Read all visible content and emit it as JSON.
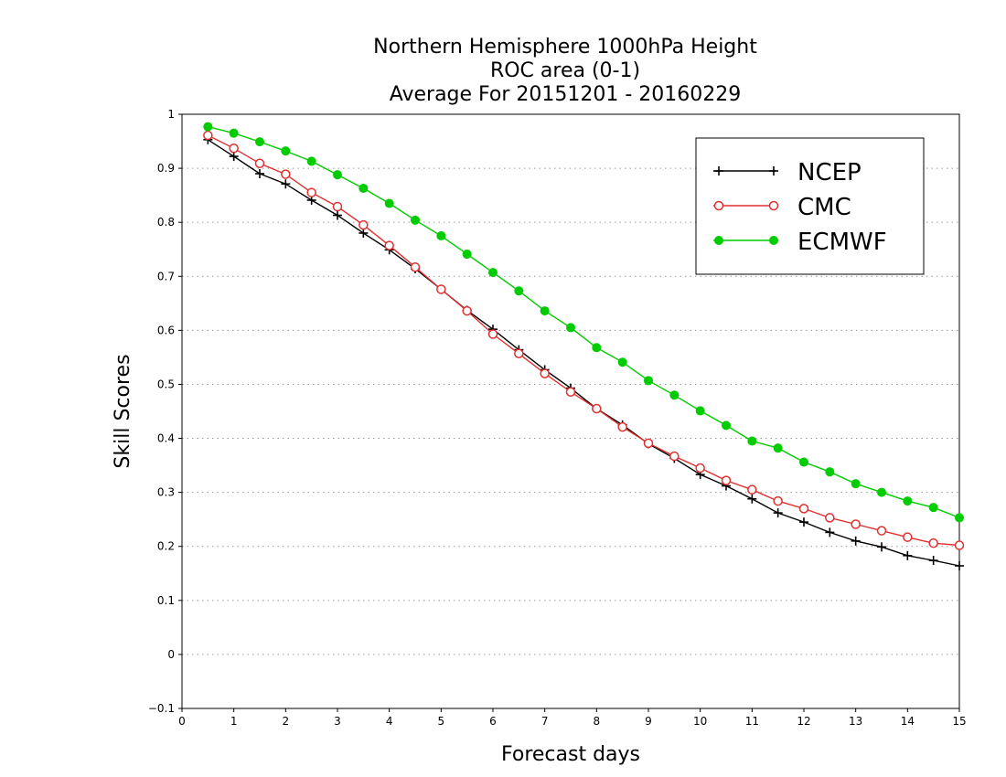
{
  "chart_data": {
    "type": "line",
    "title_lines": [
      "Northern Hemisphere 1000hPa Height",
      "ROC area (0-1)",
      "Average For 20151201 - 20160229"
    ],
    "xlabel": "Forecast days",
    "ylabel": "Skill Scores",
    "xlim": [
      0,
      15
    ],
    "ylim": [
      -0.1,
      1
    ],
    "xticks": [
      "0",
      "1",
      "2",
      "3",
      "4",
      "5",
      "6",
      "7",
      "8",
      "9",
      "10",
      "11",
      "12",
      "13",
      "14",
      "15"
    ],
    "yticks": [
      "−0.1",
      "0",
      "0.1",
      "0.2",
      "0.3",
      "0.4",
      "0.5",
      "0.6",
      "0.7",
      "0.8",
      "0.9",
      "1"
    ],
    "grid": "horizontal dotted",
    "legend_position": "top-right",
    "x": [
      0.5,
      1,
      1.5,
      2,
      2.5,
      3,
      3.5,
      4,
      4.5,
      5,
      5.5,
      6,
      6.5,
      7,
      7.5,
      8,
      8.5,
      9,
      9.5,
      10,
      10.5,
      11,
      11.5,
      12,
      12.5,
      13,
      13.5,
      14,
      14.5,
      15
    ],
    "series": [
      {
        "name": "NCEP",
        "color": "#000000",
        "marker": "plus",
        "values": [
          0.953,
          0.922,
          0.89,
          0.871,
          0.841,
          0.813,
          0.78,
          0.749,
          0.714,
          0.676,
          0.637,
          0.602,
          0.564,
          0.527,
          0.493,
          0.455,
          0.425,
          0.39,
          0.363,
          0.333,
          0.312,
          0.288,
          0.262,
          0.245,
          0.226,
          0.21,
          0.199,
          0.183,
          0.174,
          0.164
        ]
      },
      {
        "name": "CMC",
        "color": "#e03030",
        "marker": "open-circle",
        "values": [
          0.961,
          0.937,
          0.909,
          0.889,
          0.855,
          0.829,
          0.795,
          0.757,
          0.717,
          0.676,
          0.636,
          0.593,
          0.557,
          0.52,
          0.486,
          0.455,
          0.421,
          0.391,
          0.367,
          0.345,
          0.322,
          0.305,
          0.284,
          0.27,
          0.253,
          0.241,
          0.229,
          0.217,
          0.206,
          0.202
        ]
      },
      {
        "name": "ECMWF",
        "color": "#00cc00",
        "marker": "filled-circle",
        "values": [
          0.977,
          0.965,
          0.949,
          0.932,
          0.913,
          0.888,
          0.863,
          0.835,
          0.804,
          0.775,
          0.741,
          0.707,
          0.673,
          0.636,
          0.605,
          0.568,
          0.541,
          0.507,
          0.48,
          0.451,
          0.424,
          0.395,
          0.382,
          0.356,
          0.338,
          0.316,
          0.3,
          0.284,
          0.272,
          0.253
        ]
      }
    ]
  }
}
